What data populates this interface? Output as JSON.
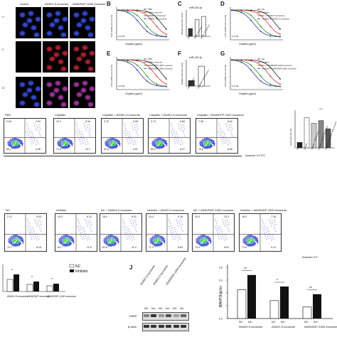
{
  "microscopy": {
    "col_labels": [
      "control",
      "A549/1.5 exosome",
      "A549/DDP-1000 exosome"
    ],
    "row_labels": [
      "H",
      "E",
      "M"
    ]
  },
  "panels": {
    "B": {
      "letter": "B",
      "xlabel": "Cisplatin (μg/ml)",
      "ylabel": "Cell viability (% control)",
      "pval": "p<0.05",
      "legend": [
        "PBS",
        "A549 exosome",
        "A549/1.5 exosome",
        "A549/1.75 exosome"
      ]
    },
    "C": {
      "letter": "C",
      "title": "miR-425-3p",
      "ylabel": "Relative expression level",
      "categories": [
        "PBS",
        "A549/1.5 exosome",
        "A549/1.75 exosome"
      ]
    },
    "D": {
      "letter": "D",
      "xlabel": "Cisplatin (μg/ml)",
      "ylabel": "Cell viability (% control)",
      "pval": "p<0.05",
      "legend": [
        "NC",
        "Inhibitor",
        "NC + A549/1.5 exosome",
        "Inhibitor + A549/1.5 exosome"
      ]
    },
    "E": {
      "letter": "E",
      "xlabel": "Cisplatin (μg/ml)",
      "ylabel": "Cell viability (% control)",
      "pval": "p<0.05",
      "legend": [
        "PBS",
        "A549 exosome",
        "A549/DDP-1000 exosome",
        "A549/DDP-1000 exosome"
      ]
    },
    "F": {
      "letter": "F",
      "title": "miR-425-3p",
      "ylabel": "Relative expression level",
      "categories": [
        "A549 exosome",
        "A549/DDP-1000 exosome"
      ]
    },
    "G": {
      "letter": "G",
      "xlabel": "Cisplatin (μg/ml)",
      "ylabel": "Cell viability (% control)",
      "pval": "p<0.05",
      "legend": [
        "NC",
        "Inhibitor",
        "NC + A549/DDP-1000 exosome",
        "Inhibitor + A549/DDP-1000 exosome"
      ]
    }
  },
  "flow_row1": {
    "plots": [
      {
        "title": "PBS",
        "q": [
          "0.63",
          "2.99",
          "89.4",
          "4.46"
        ]
      },
      {
        "title": "Cisplatin",
        "q": [
          "10.1",
          "8.16",
          "71.6",
          "10.1"
        ]
      },
      {
        "title": "Cisplatin + A549/1.5 exosome",
        "q": [
          "3.79",
          "8.08",
          "81.5",
          "4.57"
        ]
      },
      {
        "title": "Cisplatin + A549/1.5 exosome",
        "q": [
          "3.74",
          "6.66",
          "80.0",
          "6.27"
        ]
      },
      {
        "title": "Cisplatin + A549/DPP-1000 exosome",
        "q": [
          "7.36",
          "6.62",
          "79.6",
          "6.66"
        ]
      }
    ],
    "xaxis": "Annexin V-FITC",
    "bar": {
      "ylabel": "Apoptosis rate (%)",
      "sig": "***",
      "categories": [
        "PBS",
        "Cisplatin",
        "Cisplatin + A549/1.5 exosome",
        "Cisplatin + A549/1.75 exosome",
        "Cisplatin + A549/DDP-1000 exosome"
      ],
      "values": [
        4,
        22,
        18,
        20,
        14
      ]
    }
  },
  "flow_row2": {
    "plots": [
      {
        "title": "NC",
        "q": [
          "2.11",
          "9.03",
          "79.7",
          "8.16"
        ]
      },
      {
        "title": "Inhibitor",
        "q": [
          "15.3",
          "8.12",
          "63.7",
          "11.8"
        ]
      },
      {
        "title": "NC + A549/1.5 exosome",
        "q": [
          "16.0",
          "6.51",
          "62.6",
          "11.4"
        ]
      },
      {
        "title": "Inhibitor + A549/1.5 exosome",
        "q": [
          "14.4",
          "9.18",
          "77.3",
          "8.64"
        ]
      },
      {
        "title": "NC + A549/DDP-1000 exosome",
        "q": [
          "15.3",
          "10.3",
          "73.4",
          "5.51"
        ]
      },
      {
        "title": "Inhibitor + A549/DDP-1000 exosome",
        "q": [
          "16.9",
          "7.26",
          "71.6",
          "9.12"
        ]
      }
    ],
    "xaxis": "Annexin V-F"
  },
  "panel_I": {
    "legend": [
      "NC",
      "Inhibitor"
    ],
    "categories": [
      "A549/1.5 exosome",
      "A549/DDP exosome",
      "A549/DDP-1000 exosome"
    ],
    "sig": [
      "*",
      "*",
      "*"
    ],
    "nc": [
      17,
      10,
      8
    ],
    "inh": [
      24,
      14,
      11
    ]
  },
  "panel_J": {
    "letter": "J",
    "col_labels": [
      "A549/1.5 exosome",
      "A549/1.5 exosome",
      "A549/DDP-1000 exosome"
    ],
    "lane_labels": [
      "NC",
      "Inh",
      "NC",
      "Inh",
      "NC",
      "Inh"
    ],
    "band_labels": [
      "PARP",
      "β-actin"
    ],
    "bar": {
      "ylabel": "PARP/β-actin",
      "categories": [
        "A549/1.5 exosome",
        "A549/1.5 exosome",
        "A549/DDP-1000 exosome"
      ],
      "sig": [
        "**",
        "*",
        "**"
      ],
      "x_sub": [
        "NC",
        "Inh",
        "NC",
        "Inh",
        "NC",
        "Inh"
      ],
      "nc": [
        0.45,
        0.28,
        0.18
      ],
      "inh": [
        0.68,
        0.5,
        0.38
      ]
    }
  }
}
